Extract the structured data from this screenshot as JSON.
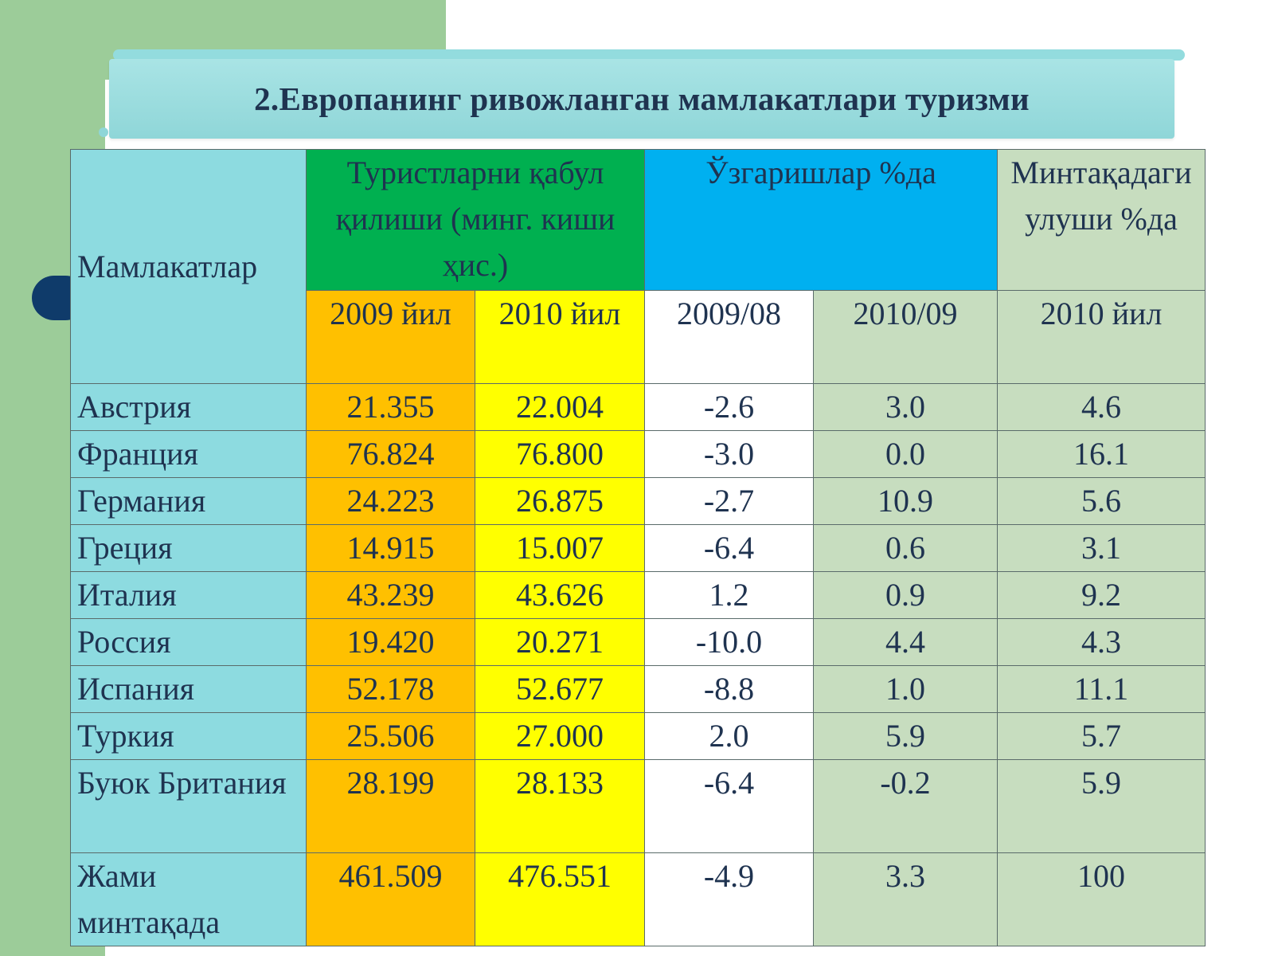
{
  "title": "2.Европанинг ривожланган мамлакатлари туризми",
  "colors": {
    "side_band": "#9ccc99",
    "title_box": "#8fd6d8",
    "bullet": "#0f3b6a",
    "country_col": "#8ddbe0",
    "orange": "#ffc000",
    "yellow": "#ffff00",
    "green_header": "#00b050",
    "blue_header": "#00b0f0",
    "sage": "#c7ddbf"
  },
  "table": {
    "header": {
      "country": "Мамлакатлар",
      "arrivals": "Туристларни қабул қилиши (минг. киши ҳис.)",
      "changes": "Ўзгаришлар  %да",
      "share": "Минтақадаги улуши %да"
    },
    "subheader": {
      "arr_2009": "2009 йил",
      "arr_2010": "2010 йил",
      "chg_0908": "2009/08",
      "chg_1009": "2010/09",
      "share_2010": "2010 йил"
    },
    "rows": [
      {
        "country": "Австрия",
        "arr_2009": "21.355",
        "arr_2010": "22.004",
        "chg_0908": "-2.6",
        "chg_1009": "3.0",
        "share": "4.6"
      },
      {
        "country": "Франция",
        "arr_2009": "76.824",
        "arr_2010": "76.800",
        "chg_0908": "-3.0",
        "chg_1009": "0.0",
        "share": "16.1"
      },
      {
        "country": "Германия",
        "arr_2009": "24.223",
        "arr_2010": "26.875",
        "chg_0908": "-2.7",
        "chg_1009": "10.9",
        "share": "5.6"
      },
      {
        "country": "Греция",
        "arr_2009": "14.915",
        "arr_2010": "15.007",
        "chg_0908": "-6.4",
        "chg_1009": "0.6",
        "share": "3.1"
      },
      {
        "country": "Италия",
        "arr_2009": "43.239",
        "arr_2010": "43.626",
        "chg_0908": "1.2",
        "chg_1009": "0.9",
        "share": "9.2"
      },
      {
        "country": "Россия",
        "arr_2009": "19.420",
        "arr_2010": "20.271",
        "chg_0908": "-10.0",
        "chg_1009": "4.4",
        "share": "4.3"
      },
      {
        "country": "Испания",
        "arr_2009": "52.178",
        "arr_2010": "52.677",
        "chg_0908": "-8.8",
        "chg_1009": "1.0",
        "share": "11.1"
      },
      {
        "country": "Туркия",
        "arr_2009": "25.506",
        "arr_2010": "27.000",
        "chg_0908": "2.0",
        "chg_1009": "5.9",
        "share": "5.7"
      },
      {
        "country": "Буюк Британия",
        "arr_2009": "28.199",
        "arr_2010": "28.133",
        "chg_0908": "-6.4",
        "chg_1009": "-0.2",
        "share": "5.9"
      },
      {
        "country": "Жами минтақада",
        "arr_2009": "461.509",
        "arr_2010": "476.551",
        "chg_0908": "-4.9",
        "chg_1009": "3.3",
        "share": "100"
      }
    ]
  }
}
